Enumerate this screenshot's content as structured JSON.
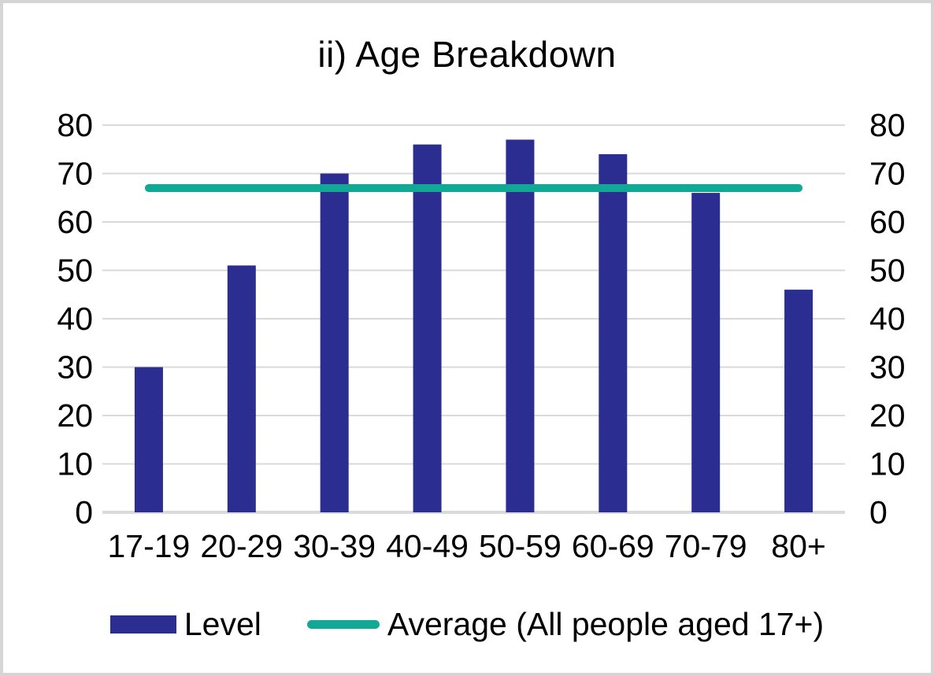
{
  "page": {
    "background": "#ffffff",
    "border_color": "#d5d5d5"
  },
  "chart_data": {
    "type": "bar",
    "title": "ii) Age Breakdown",
    "categories": [
      "17-19",
      "20-29",
      "30-39",
      "40-49",
      "50-59",
      "60-69",
      "70-79",
      "80+"
    ],
    "series": [
      {
        "name": "Level",
        "type": "bar",
        "color": "#2b2d90",
        "values": [
          30,
          51,
          70,
          76,
          77,
          74,
          66,
          46
        ]
      },
      {
        "name": "Average (All people aged 17+)",
        "type": "line",
        "color": "#11a895",
        "value": 67
      }
    ],
    "y_axis": {
      "min": 0,
      "max": 80,
      "step": 10,
      "ticks": [
        "0",
        "10",
        "20",
        "30",
        "40",
        "50",
        "60",
        "70",
        "80"
      ],
      "sides": "both"
    },
    "xlabel": "",
    "ylabel": "",
    "grid": true,
    "gridline_color": "#d9d9d9",
    "axisline_color": "#dadada",
    "legend_position": "bottom"
  }
}
